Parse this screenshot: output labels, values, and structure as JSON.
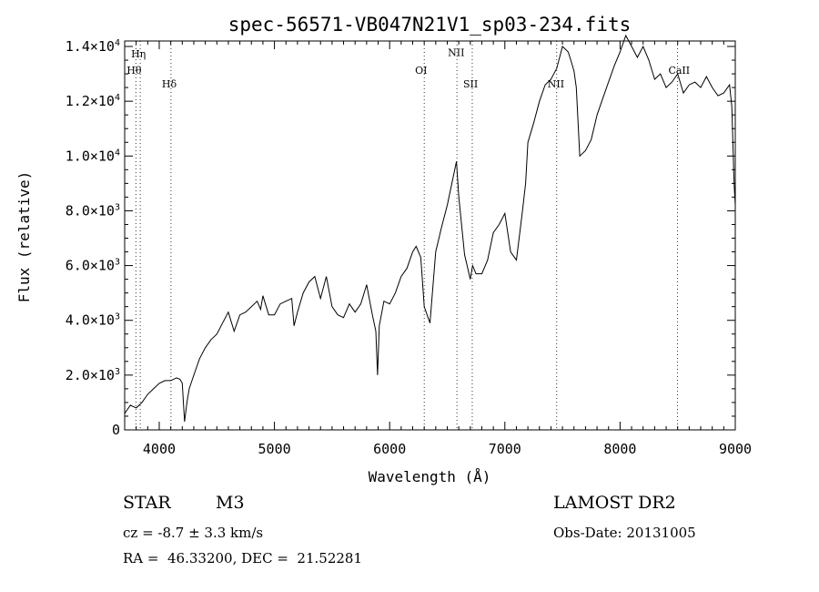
{
  "chart_data": {
    "type": "line",
    "title": "spec-56571-VB047N21V1_sp03-234.fits",
    "xlabel": "Wavelength (Å)",
    "ylabel": "Flux (relative)",
    "xlim": [
      3700,
      9000
    ],
    "ylim": [
      0,
      14200
    ],
    "x_ticks": [
      {
        "value": 4000,
        "label": "4000"
      },
      {
        "value": 5000,
        "label": "5000"
      },
      {
        "value": 6000,
        "label": "6000"
      },
      {
        "value": 7000,
        "label": "7000"
      },
      {
        "value": 8000,
        "label": "8000"
      },
      {
        "value": 9000,
        "label": "9000"
      }
    ],
    "y_ticks": [
      {
        "value": 0,
        "mant": "0",
        "exp": ""
      },
      {
        "value": 2000,
        "mant": "2.0×10",
        "exp": "3"
      },
      {
        "value": 4000,
        "mant": "4.0×10",
        "exp": "3"
      },
      {
        "value": 6000,
        "mant": "6.0×10",
        "exp": "3"
      },
      {
        "value": 8000,
        "mant": "8.0×10",
        "exp": "3"
      },
      {
        "value": 10000,
        "mant": "1.0×10",
        "exp": "4"
      },
      {
        "value": 12000,
        "mant": "1.2×10",
        "exp": "4"
      },
      {
        "value": 14000,
        "mant": "1.4×10",
        "exp": "4"
      }
    ],
    "lines": [
      {
        "label": "Hη",
        "wavelength": 3835,
        "label_flux": 13600
      },
      {
        "label": "Hθ",
        "wavelength": 3797,
        "label_flux": 13000
      },
      {
        "label": "Hδ",
        "wavelength": 4102,
        "label_flux": 12500
      },
      {
        "label": "OI",
        "wavelength": 6300,
        "label_flux": 13000
      },
      {
        "label": "NII",
        "wavelength": 6584,
        "label_flux": 13650
      },
      {
        "label": "SII",
        "wavelength": 6717,
        "label_flux": 12500
      },
      {
        "label": "NII",
        "wavelength": 7450,
        "label_flux": 12500
      },
      {
        "label": "CaII",
        "wavelength": 8498,
        "label_flux": 13000
      }
    ],
    "series": [
      {
        "x": [
          3700,
          3750,
          3800,
          3850,
          3900,
          3950,
          4000,
          4050,
          4100,
          4150,
          4180,
          4200,
          4220,
          4240,
          4260,
          4300,
          4350,
          4400,
          4450,
          4500,
          4550,
          4600,
          4650,
          4700,
          4750,
          4800,
          4850,
          4880,
          4900,
          4950,
          5000,
          5050,
          5100,
          5150,
          5170,
          5200,
          5250,
          5300,
          5350,
          5400,
          5450,
          5500,
          5550,
          5600,
          5650,
          5700,
          5750,
          5800,
          5850,
          5880,
          5895,
          5910,
          5950,
          6000,
          6050,
          6100,
          6150,
          6200,
          6230,
          6270,
          6300,
          6350,
          6400,
          6450,
          6500,
          6550,
          6580,
          6600,
          6650,
          6700,
          6720,
          6750,
          6800,
          6850,
          6900,
          6950,
          7000,
          7050,
          7100,
          7150,
          7180,
          7200,
          7250,
          7300,
          7350,
          7400,
          7450,
          7500,
          7550,
          7580,
          7600,
          7620,
          7650,
          7700,
          7750,
          7800,
          7850,
          7900,
          7950,
          8000,
          8050,
          8100,
          8150,
          8200,
          8250,
          8300,
          8350,
          8400,
          8450,
          8500,
          8550,
          8600,
          8650,
          8700,
          8750,
          8800,
          8850,
          8900,
          8950,
          8970,
          8990,
          9000
        ],
        "y": [
          600,
          900,
          800,
          1000,
          1300,
          1500,
          1700,
          1800,
          1800,
          1900,
          1850,
          1700,
          300,
          1000,
          1500,
          2000,
          2600,
          3000,
          3300,
          3500,
          3900,
          4300,
          3600,
          4200,
          4300,
          4500,
          4700,
          4400,
          4900,
          4200,
          4200,
          4600,
          4700,
          4800,
          3800,
          4300,
          5000,
          5400,
          5600,
          4800,
          5600,
          4500,
          4200,
          4100,
          4600,
          4300,
          4600,
          5300,
          4200,
          3600,
          2000,
          3800,
          4700,
          4600,
          5000,
          5600,
          5900,
          6500,
          6700,
          6300,
          4500,
          3900,
          6500,
          7400,
          8200,
          9200,
          9800,
          8500,
          6400,
          5500,
          6000,
          5700,
          5700,
          6200,
          7200,
          7500,
          7900,
          6500,
          6200,
          7900,
          9000,
          10500,
          11200,
          12000,
          12600,
          12800,
          13200,
          14000,
          13800,
          13400,
          13100,
          12500,
          10000,
          10200,
          10600,
          11500,
          12100,
          12700,
          13300,
          13800,
          14400,
          14000,
          13600,
          14000,
          13500,
          12800,
          13000,
          12500,
          12700,
          13000,
          12300,
          12600,
          12700,
          12500,
          12900,
          12500,
          12200,
          12300,
          12600,
          11800,
          9000,
          8200
        ]
      }
    ]
  },
  "info": {
    "star_label": "STAR",
    "spectral_type": "M3",
    "survey": "LAMOST DR2",
    "cz": "cz = -8.7 ± 3.3 km/s",
    "obs_date": "Obs-Date: 20131005",
    "radec": "RA =  46.33200, DEC =  21.52281"
  }
}
